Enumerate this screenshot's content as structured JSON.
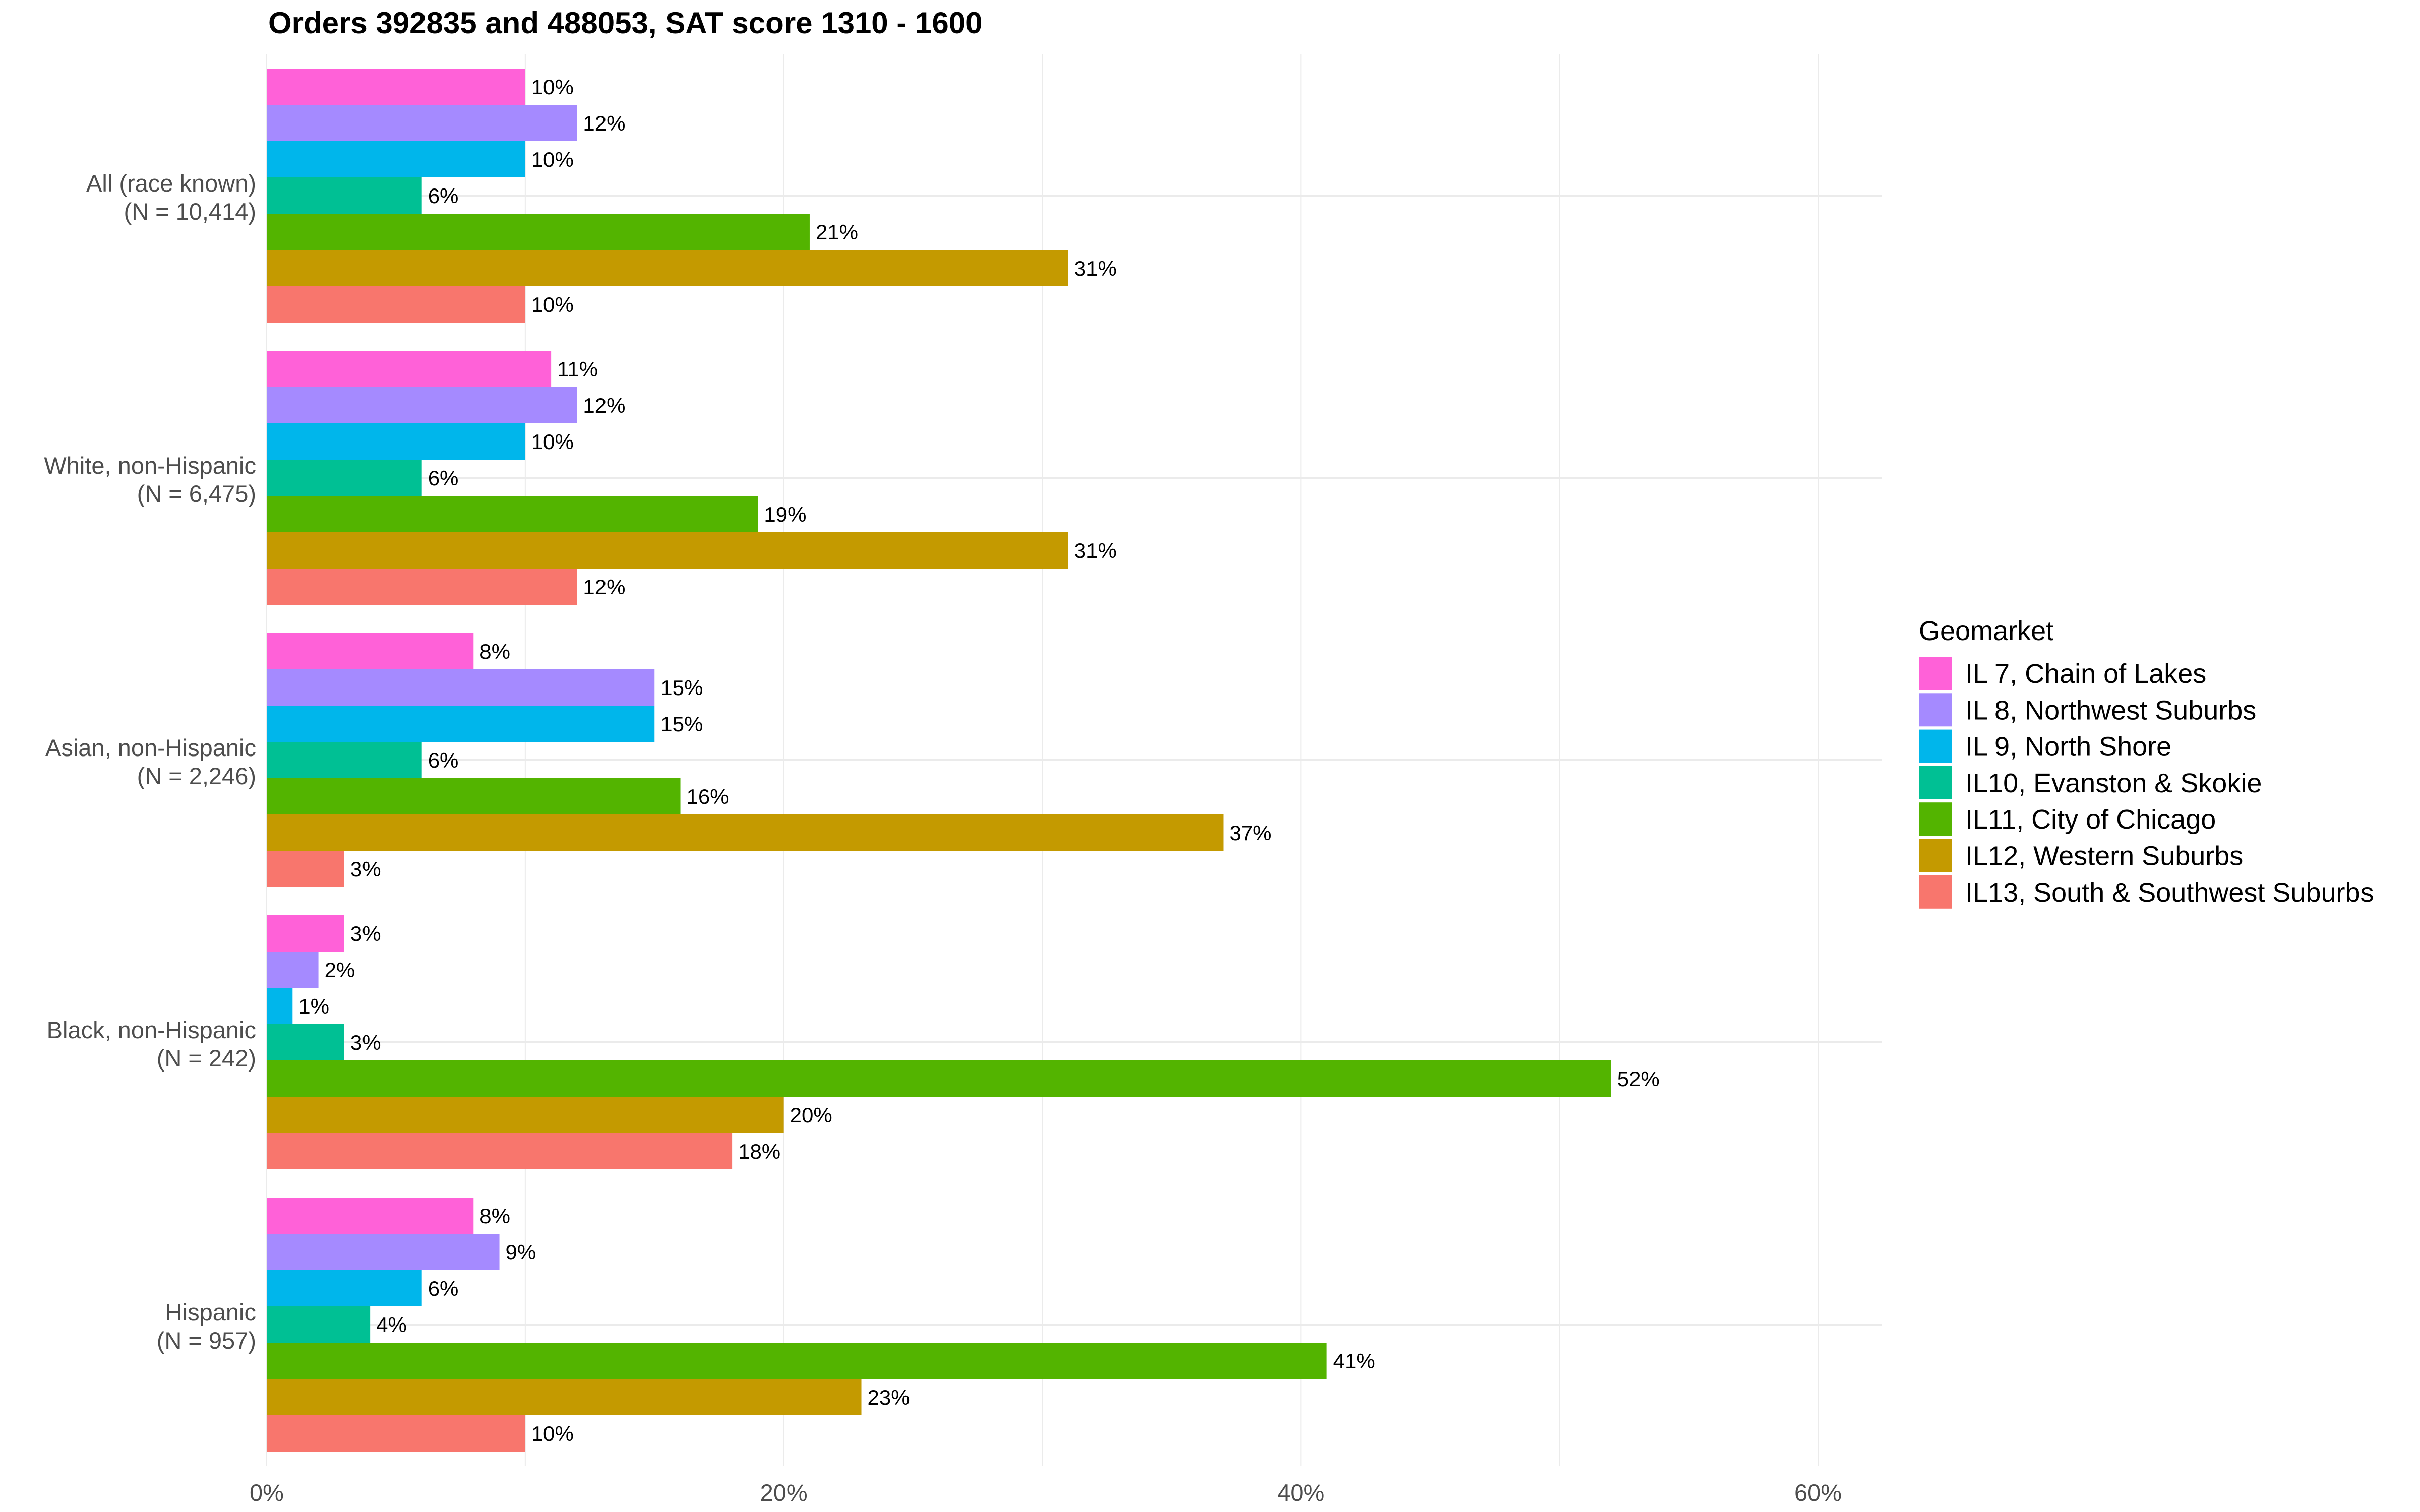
{
  "chart_data": {
    "type": "bar",
    "orientation": "horizontal",
    "title": "Orders 392835 and 488053, SAT score 1310 - 1600",
    "xlabel": "",
    "ylabel": "",
    "xlim": [
      0,
      62
    ],
    "x_ticks": [
      0,
      20,
      40,
      60
    ],
    "x_tick_labels": [
      "0%",
      "20%",
      "40%",
      "60%"
    ],
    "grid": true,
    "legend": {
      "title": "Geomarket",
      "position": "right"
    },
    "categories": [
      {
        "line1": "All (race known)",
        "line2": "(N = 10,414)"
      },
      {
        "line1": "White, non-Hispanic",
        "line2": "(N = 6,475)"
      },
      {
        "line1": "Asian, non-Hispanic",
        "line2": "(N = 2,246)"
      },
      {
        "line1": "Black, non-Hispanic",
        "line2": "(N = 242)"
      },
      {
        "line1": "Hispanic",
        "line2": "(N = 957)"
      }
    ],
    "series": [
      {
        "name": "IL 7, Chain of Lakes",
        "color": "#FF61D8",
        "values": [
          10,
          11,
          8,
          3,
          8
        ]
      },
      {
        "name": "IL 8, Northwest Suburbs",
        "color": "#A58AFF",
        "values": [
          12,
          12,
          15,
          2,
          9
        ]
      },
      {
        "name": "IL 9, North Shore",
        "color": "#00B6EB",
        "values": [
          10,
          10,
          15,
          1,
          6
        ]
      },
      {
        "name": "IL10, Evanston & Skokie",
        "color": "#00C094",
        "values": [
          6,
          6,
          6,
          3,
          4
        ]
      },
      {
        "name": "IL11, City of Chicago",
        "color": "#53B400",
        "values": [
          21,
          19,
          16,
          52,
          41
        ]
      },
      {
        "name": "IL12, Western Suburbs",
        "color": "#C49A00",
        "values": [
          31,
          31,
          37,
          20,
          23
        ]
      },
      {
        "name": "IL13, South & Southwest Suburbs",
        "color": "#F8766D",
        "values": [
          10,
          12,
          3,
          18,
          10
        ]
      }
    ],
    "label_suffix": "%"
  }
}
